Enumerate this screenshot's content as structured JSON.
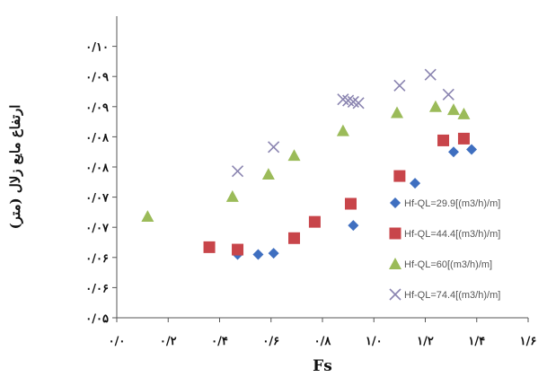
{
  "chart_data": {
    "type": "scatter",
    "xlabel": "Fs",
    "ylabel": "ارتفاع مایع زلال (متر)",
    "xlim": [
      0,
      1.6
    ],
    "ylim": [
      0.05,
      0.1
    ],
    "x_ticks": [
      {
        "value": 0.0,
        "label": "۰/۰"
      },
      {
        "value": 0.2,
        "label": "۰/۲"
      },
      {
        "value": 0.4,
        "label": "۰/۴"
      },
      {
        "value": 0.6,
        "label": "۰/۶"
      },
      {
        "value": 0.8,
        "label": "۰/۸"
      },
      {
        "value": 1.0,
        "label": "۱/۰"
      },
      {
        "value": 1.2,
        "label": "۱/۲"
      },
      {
        "value": 1.4,
        "label": "۱/۴"
      },
      {
        "value": 1.6,
        "label": "۱/۶"
      }
    ],
    "y_ticks": [
      {
        "value": 0.05,
        "label": "۰/۰۵"
      },
      {
        "value": 0.055,
        "label": "۰/۰۶"
      },
      {
        "value": 0.06,
        "label": "۰/۰۶"
      },
      {
        "value": 0.065,
        "label": "۰/۰۷"
      },
      {
        "value": 0.07,
        "label": "۰/۰۷"
      },
      {
        "value": 0.075,
        "label": "۰/۰۸"
      },
      {
        "value": 0.08,
        "label": "۰/۰۸"
      },
      {
        "value": 0.085,
        "label": "۰/۰۹"
      },
      {
        "value": 0.09,
        "label": "۰/۰۹"
      },
      {
        "value": 0.095,
        "label": "۰/۱۰"
      }
    ],
    "grid": false,
    "legend_position": "right",
    "series": [
      {
        "name": "Hf-QL=29.9[(m3/h)/m]",
        "marker": "diamond",
        "color": "#3f6fc0",
        "points": [
          [
            0.47,
            0.0605
          ],
          [
            0.55,
            0.0605
          ],
          [
            0.61,
            0.0607
          ],
          [
            0.92,
            0.0653
          ],
          [
            1.16,
            0.0723
          ],
          [
            1.31,
            0.0775
          ],
          [
            1.38,
            0.0779
          ]
        ]
      },
      {
        "name": "Hf-QL=44.4[(m3/h)/m]",
        "marker": "square",
        "color": "#c8454a",
        "points": [
          [
            0.36,
            0.0617
          ],
          [
            0.47,
            0.0613
          ],
          [
            0.69,
            0.0632
          ],
          [
            0.77,
            0.0659
          ],
          [
            0.91,
            0.0689
          ],
          [
            1.1,
            0.0735
          ],
          [
            1.27,
            0.0794
          ],
          [
            1.35,
            0.0797
          ]
        ]
      },
      {
        "name": "Hf-QL=60[(m3/h)/m]",
        "marker": "triangle",
        "color": "#9bbb59",
        "points": [
          [
            0.12,
            0.0668
          ],
          [
            0.45,
            0.0701
          ],
          [
            0.59,
            0.0738
          ],
          [
            0.69,
            0.0769
          ],
          [
            0.88,
            0.081
          ],
          [
            1.09,
            0.084
          ],
          [
            1.24,
            0.085
          ],
          [
            1.31,
            0.0845
          ],
          [
            1.35,
            0.0838
          ]
        ]
      },
      {
        "name": "Hf-QL=74.4[(m3/h)/m]",
        "marker": "x",
        "color": "#8a84b0",
        "points": [
          [
            0.47,
            0.0743
          ],
          [
            0.61,
            0.0783
          ],
          [
            0.88,
            0.0862
          ],
          [
            0.9,
            0.086
          ],
          [
            0.92,
            0.0858
          ],
          [
            0.94,
            0.0856
          ],
          [
            1.1,
            0.0885
          ],
          [
            1.22,
            0.0903
          ],
          [
            1.29,
            0.087
          ]
        ]
      }
    ]
  }
}
